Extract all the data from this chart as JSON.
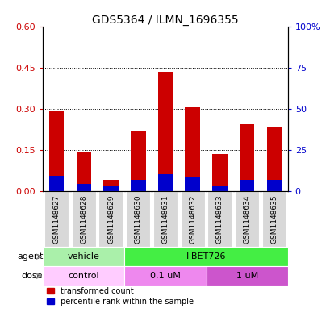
{
  "title": "GDS5364 / ILMN_1696355",
  "samples": [
    "GSM1148627",
    "GSM1148628",
    "GSM1148629",
    "GSM1148630",
    "GSM1148631",
    "GSM1148632",
    "GSM1148633",
    "GSM1148634",
    "GSM1148635"
  ],
  "red_values": [
    0.29,
    0.145,
    0.04,
    0.22,
    0.435,
    0.305,
    0.135,
    0.245,
    0.235
  ],
  "blue_values": [
    0.055,
    0.025,
    0.02,
    0.04,
    0.06,
    0.05,
    0.02,
    0.04,
    0.04
  ],
  "ylim": [
    0,
    0.6
  ],
  "yticks_left": [
    0,
    0.15,
    0.3,
    0.45,
    0.6
  ],
  "yticks_right": [
    0,
    25,
    50,
    75,
    100
  ],
  "left_color": "#cc0000",
  "right_color": "#0000cc",
  "bar_color_red": "#cc0000",
  "bar_color_blue": "#0000cc",
  "agent_labels": [
    {
      "text": "vehicle",
      "start": 0,
      "end": 3,
      "color": "#aaf0aa"
    },
    {
      "text": "I-BET726",
      "start": 3,
      "end": 9,
      "color": "#44ee44"
    }
  ],
  "dose_labels": [
    {
      "text": "control",
      "start": 0,
      "end": 3,
      "color": "#ffccff"
    },
    {
      "text": "0.1 uM",
      "start": 3,
      "end": 6,
      "color": "#ee88ee"
    },
    {
      "text": "1 uM",
      "start": 6,
      "end": 9,
      "color": "#cc55cc"
    }
  ],
  "legend_red": "transformed count",
  "legend_blue": "percentile rank within the sample",
  "bar_width": 0.55,
  "sample_fontsize": 6.5,
  "title_fontsize": 10,
  "label_fontsize": 8,
  "annot_fontsize": 7.5
}
